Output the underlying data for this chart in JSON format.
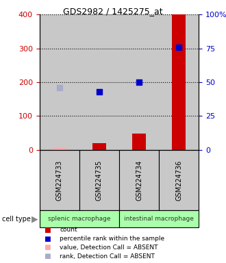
{
  "title": "GDS2982 / 1425275_at",
  "samples": [
    "GSM224733",
    "GSM224735",
    "GSM224734",
    "GSM224736"
  ],
  "count_values": [
    5,
    20,
    48,
    400
  ],
  "count_absent": [
    true,
    false,
    false,
    false
  ],
  "rank_values": [
    46,
    43,
    50,
    76
  ],
  "rank_absent": [
    true,
    false,
    false,
    false
  ],
  "ylim_left": [
    0,
    400
  ],
  "ylim_right": [
    0,
    100
  ],
  "yticks_left": [
    0,
    100,
    200,
    300,
    400
  ],
  "yticks_right": [
    0,
    25,
    50,
    75,
    100
  ],
  "ytick_labels_right": [
    "0",
    "25",
    "50",
    "75",
    "100%"
  ],
  "bar_color_present": "#cc0000",
  "bar_color_absent": "#ffaaaa",
  "dot_color_present": "#0000cc",
  "dot_color_absent": "#aaaacc",
  "bg_color_samples": "#c8c8c8",
  "bg_color_group": "#aaffaa",
  "legend_items": [
    {
      "color": "#cc0000",
      "label": "count"
    },
    {
      "color": "#0000cc",
      "label": "percentile rank within the sample"
    },
    {
      "color": "#ffaaaa",
      "label": "value, Detection Call = ABSENT"
    },
    {
      "color": "#aaaacc",
      "label": "rank, Detection Call = ABSENT"
    }
  ],
  "fig_width": 3.3,
  "fig_height": 3.84,
  "dpi": 100
}
